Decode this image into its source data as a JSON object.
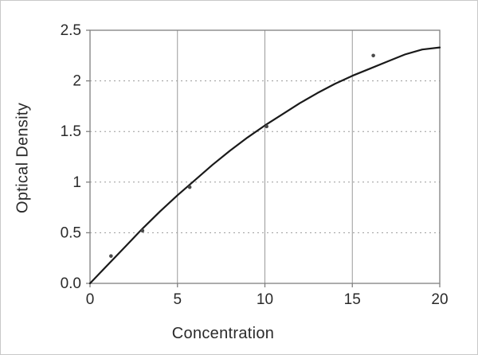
{
  "figure": {
    "background": "#ffffff",
    "border_color": "#c9c9c9"
  },
  "colors": {
    "text": "#2a2a2a",
    "plot_border": "#7f7f7f",
    "grid": "#9a9a9a",
    "curve": "#1a1a1a",
    "marker": "#4a4a4a"
  },
  "chart_data": {
    "type": "line",
    "title": "",
    "xlabel": "Concentration",
    "ylabel": "Optical Density",
    "xlim": [
      0,
      20
    ],
    "ylim": [
      0,
      2.5
    ],
    "x_ticks": [
      0,
      5,
      10,
      15,
      20
    ],
    "x_tick_labels": [
      "0",
      "5",
      "10",
      "15",
      "20"
    ],
    "y_ticks": [
      0,
      0.5,
      1,
      1.5,
      2,
      2.5
    ],
    "y_tick_labels": [
      "0.0",
      "0.5",
      "1",
      "1.5",
      "2",
      "2.5"
    ],
    "grid": {
      "vertical": "solid",
      "horizontal": "dashed"
    },
    "legend": null,
    "series": [
      {
        "name": "fitted-curve",
        "type": "line",
        "color": "#1a1a1a",
        "x": [
          0,
          1,
          2,
          3,
          4,
          5,
          6,
          7,
          8,
          9,
          10,
          11,
          12,
          13,
          14,
          15,
          16,
          17,
          18,
          19,
          20
        ],
        "y": [
          0.0,
          0.18,
          0.36,
          0.54,
          0.71,
          0.87,
          1.02,
          1.17,
          1.31,
          1.44,
          1.56,
          1.67,
          1.78,
          1.88,
          1.97,
          2.05,
          2.12,
          2.19,
          2.26,
          2.31,
          2.33
        ]
      },
      {
        "name": "data-points",
        "type": "scatter",
        "color": "#4a4a4a",
        "x": [
          1.2,
          3.0,
          5.7,
          10.1,
          16.2
        ],
        "y": [
          0.27,
          0.52,
          0.95,
          1.55,
          2.25
        ]
      }
    ]
  }
}
